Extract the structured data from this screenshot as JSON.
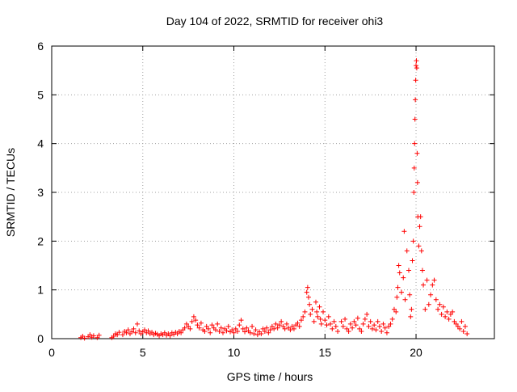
{
  "chart_data": {
    "type": "scatter",
    "title": "Day 104 of 2022, SRMTID for receiver ohi3",
    "xlabel": "GPS time / hours",
    "ylabel": "SRMTID / TECUs",
    "xlim": [
      0,
      24.3
    ],
    "ylim": [
      0,
      6
    ],
    "xticks": [
      0,
      5,
      10,
      15,
      20
    ],
    "yticks": [
      0,
      1,
      2,
      3,
      4,
      5,
      6
    ],
    "grid": true,
    "marker": "+",
    "color": "#ff0000",
    "series": [
      {
        "name": "SRMTID",
        "points": [
          [
            1.6,
            0.02
          ],
          [
            1.7,
            0.05
          ],
          [
            1.8,
            0.01
          ],
          [
            2.0,
            0.04
          ],
          [
            2.1,
            0.08
          ],
          [
            2.2,
            0.03
          ],
          [
            2.3,
            0.06
          ],
          [
            2.5,
            0.02
          ],
          [
            2.6,
            0.07
          ],
          [
            3.3,
            0.02
          ],
          [
            3.4,
            0.05
          ],
          [
            3.5,
            0.1
          ],
          [
            3.6,
            0.08
          ],
          [
            3.7,
            0.13
          ],
          [
            3.9,
            0.08
          ],
          [
            4.0,
            0.15
          ],
          [
            4.1,
            0.12
          ],
          [
            4.2,
            0.18
          ],
          [
            4.3,
            0.1
          ],
          [
            4.4,
            0.14
          ],
          [
            4.5,
            0.2
          ],
          [
            4.6,
            0.12
          ],
          [
            4.7,
            0.3
          ],
          [
            4.8,
            0.16
          ],
          [
            4.9,
            0.1
          ],
          [
            5.0,
            0.14
          ],
          [
            5.1,
            0.18
          ],
          [
            5.2,
            0.12
          ],
          [
            5.3,
            0.16
          ],
          [
            5.4,
            0.1
          ],
          [
            5.5,
            0.13
          ],
          [
            5.6,
            0.08
          ],
          [
            5.7,
            0.11
          ],
          [
            5.8,
            0.09
          ],
          [
            5.9,
            0.06
          ],
          [
            6.0,
            0.1
          ],
          [
            6.1,
            0.08
          ],
          [
            6.2,
            0.12
          ],
          [
            6.3,
            0.07
          ],
          [
            6.4,
            0.1
          ],
          [
            6.5,
            0.06
          ],
          [
            6.6,
            0.12
          ],
          [
            6.7,
            0.09
          ],
          [
            6.8,
            0.13
          ],
          [
            6.9,
            0.1
          ],
          [
            7.0,
            0.15
          ],
          [
            7.1,
            0.12
          ],
          [
            7.2,
            0.18
          ],
          [
            7.3,
            0.22
          ],
          [
            7.4,
            0.3
          ],
          [
            7.5,
            0.25
          ],
          [
            7.6,
            0.2
          ],
          [
            7.7,
            0.35
          ],
          [
            7.8,
            0.45
          ],
          [
            7.9,
            0.38
          ],
          [
            8.0,
            0.28
          ],
          [
            8.1,
            0.22
          ],
          [
            8.2,
            0.32
          ],
          [
            8.3,
            0.18
          ],
          [
            8.4,
            0.15
          ],
          [
            8.5,
            0.25
          ],
          [
            8.6,
            0.2
          ],
          [
            8.7,
            0.12
          ],
          [
            8.8,
            0.28
          ],
          [
            8.9,
            0.22
          ],
          [
            9.0,
            0.18
          ],
          [
            9.1,
            0.3
          ],
          [
            9.2,
            0.15
          ],
          [
            9.3,
            0.22
          ],
          [
            9.4,
            0.12
          ],
          [
            9.5,
            0.2
          ],
          [
            9.6,
            0.16
          ],
          [
            9.7,
            0.25
          ],
          [
            9.8,
            0.14
          ],
          [
            9.9,
            0.18
          ],
          [
            10.0,
            0.12
          ],
          [
            10.1,
            0.2
          ],
          [
            10.2,
            0.15
          ],
          [
            10.3,
            0.28
          ],
          [
            10.4,
            0.38
          ],
          [
            10.5,
            0.2
          ],
          [
            10.6,
            0.14
          ],
          [
            10.7,
            0.22
          ],
          [
            10.8,
            0.16
          ],
          [
            10.9,
            0.12
          ],
          [
            11.0,
            0.25
          ],
          [
            11.1,
            0.1
          ],
          [
            11.2,
            0.18
          ],
          [
            11.3,
            0.08
          ],
          [
            11.4,
            0.14
          ],
          [
            11.5,
            0.1
          ],
          [
            11.6,
            0.2
          ],
          [
            11.7,
            0.15
          ],
          [
            11.8,
            0.22
          ],
          [
            11.9,
            0.12
          ],
          [
            12.0,
            0.18
          ],
          [
            12.1,
            0.25
          ],
          [
            12.2,
            0.2
          ],
          [
            12.3,
            0.3
          ],
          [
            12.4,
            0.22
          ],
          [
            12.5,
            0.28
          ],
          [
            12.6,
            0.35
          ],
          [
            12.7,
            0.25
          ],
          [
            12.8,
            0.2
          ],
          [
            12.9,
            0.3
          ],
          [
            13.0,
            0.22
          ],
          [
            13.1,
            0.18
          ],
          [
            13.2,
            0.25
          ],
          [
            13.3,
            0.2
          ],
          [
            13.4,
            0.28
          ],
          [
            13.5,
            0.32
          ],
          [
            13.6,
            0.25
          ],
          [
            13.7,
            0.38
          ],
          [
            13.8,
            0.45
          ],
          [
            13.9,
            0.55
          ],
          [
            14.0,
            0.95
          ],
          [
            14.05,
            1.05
          ],
          [
            14.1,
            0.85
          ],
          [
            14.15,
            0.7
          ],
          [
            14.2,
            0.5
          ],
          [
            14.3,
            0.6
          ],
          [
            14.4,
            0.35
          ],
          [
            14.5,
            0.75
          ],
          [
            14.55,
            0.55
          ],
          [
            14.6,
            0.45
          ],
          [
            14.7,
            0.65
          ],
          [
            14.75,
            0.4
          ],
          [
            14.8,
            0.3
          ],
          [
            14.9,
            0.55
          ],
          [
            15.0,
            0.38
          ],
          [
            15.1,
            0.28
          ],
          [
            15.2,
            0.45
          ],
          [
            15.3,
            0.3
          ],
          [
            15.4,
            0.2
          ],
          [
            15.5,
            0.35
          ],
          [
            15.6,
            0.25
          ],
          [
            15.7,
            0.15
          ],
          [
            15.9,
            0.35
          ],
          [
            16.0,
            0.25
          ],
          [
            16.1,
            0.4
          ],
          [
            16.2,
            0.2
          ],
          [
            16.3,
            0.15
          ],
          [
            16.4,
            0.3
          ],
          [
            16.5,
            0.22
          ],
          [
            16.6,
            0.35
          ],
          [
            16.7,
            0.28
          ],
          [
            16.8,
            0.42
          ],
          [
            16.9,
            0.2
          ],
          [
            17.0,
            0.15
          ],
          [
            17.1,
            0.3
          ],
          [
            17.2,
            0.4
          ],
          [
            17.3,
            0.5
          ],
          [
            17.4,
            0.25
          ],
          [
            17.5,
            0.35
          ],
          [
            17.6,
            0.2
          ],
          [
            17.7,
            0.28
          ],
          [
            17.8,
            0.18
          ],
          [
            17.9,
            0.35
          ],
          [
            18.0,
            0.25
          ],
          [
            18.1,
            0.15
          ],
          [
            18.2,
            0.3
          ],
          [
            18.3,
            0.22
          ],
          [
            18.4,
            0.12
          ],
          [
            18.5,
            0.25
          ],
          [
            18.6,
            0.3
          ],
          [
            18.7,
            0.4
          ],
          [
            18.8,
            0.6
          ],
          [
            18.9,
            0.55
          ],
          [
            18.95,
            0.85
          ],
          [
            19.0,
            1.05
          ],
          [
            19.05,
            1.5
          ],
          [
            19.1,
            1.35
          ],
          [
            19.2,
            0.95
          ],
          [
            19.3,
            1.25
          ],
          [
            19.35,
            2.2
          ],
          [
            19.4,
            0.8
          ],
          [
            19.5,
            1.8
          ],
          [
            19.6,
            1.4
          ],
          [
            19.65,
            0.9
          ],
          [
            19.7,
            0.45
          ],
          [
            19.75,
            0.6
          ],
          [
            19.8,
            1.6
          ],
          [
            19.85,
            2.0
          ],
          [
            19.88,
            3.0
          ],
          [
            19.9,
            3.5
          ],
          [
            19.92,
            4.0
          ],
          [
            19.94,
            4.5
          ],
          [
            19.96,
            4.9
          ],
          [
            19.98,
            5.3
          ],
          [
            20.0,
            5.6
          ],
          [
            20.02,
            5.7
          ],
          [
            20.04,
            5.55
          ],
          [
            20.06,
            3.8
          ],
          [
            20.08,
            3.2
          ],
          [
            20.1,
            2.5
          ],
          [
            20.15,
            1.9
          ],
          [
            20.2,
            2.3
          ],
          [
            20.25,
            2.5
          ],
          [
            20.3,
            1.8
          ],
          [
            20.35,
            1.4
          ],
          [
            20.4,
            1.1
          ],
          [
            20.5,
            0.6
          ],
          [
            20.6,
            1.2
          ],
          [
            20.7,
            0.7
          ],
          [
            20.8,
            0.9
          ],
          [
            20.9,
            1.1
          ],
          [
            21.0,
            1.2
          ],
          [
            21.1,
            0.8
          ],
          [
            21.2,
            0.6
          ],
          [
            21.3,
            0.7
          ],
          [
            21.4,
            0.5
          ],
          [
            21.5,
            0.65
          ],
          [
            21.6,
            0.45
          ],
          [
            21.7,
            0.55
          ],
          [
            21.8,
            0.4
          ],
          [
            21.9,
            0.5
          ],
          [
            22.0,
            0.55
          ],
          [
            22.1,
            0.35
          ],
          [
            22.2,
            0.3
          ],
          [
            22.3,
            0.25
          ],
          [
            22.4,
            0.2
          ],
          [
            22.5,
            0.35
          ],
          [
            22.6,
            0.15
          ],
          [
            22.7,
            0.25
          ],
          [
            22.8,
            0.1
          ]
        ]
      }
    ]
  }
}
